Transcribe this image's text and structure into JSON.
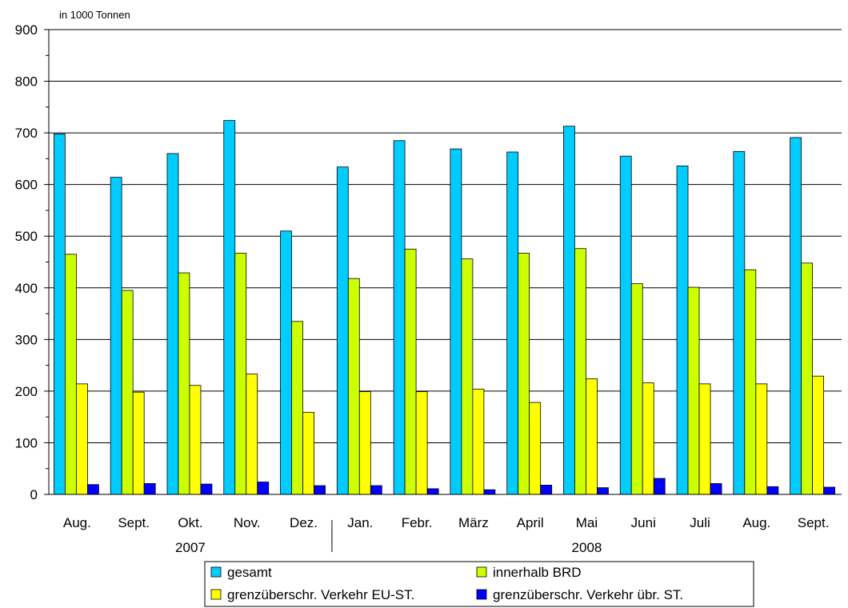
{
  "chart_data": {
    "type": "bar",
    "unit_label": "in 1000 Tonnen",
    "categories": [
      "Aug.",
      "Sept.",
      "Okt.",
      "Nov.",
      "Dez.",
      "Jan.",
      "Febr.",
      "März",
      "April",
      "Mai",
      "Juni",
      "Juli",
      "Aug.",
      "Sept."
    ],
    "year_labels": [
      {
        "text": "2007",
        "first_index": 0,
        "last_index": 4
      },
      {
        "text": "2008",
        "first_index": 5,
        "last_index": 13
      }
    ],
    "series": [
      {
        "name": "gesamt",
        "color": "#00ccff",
        "values": [
          698,
          614,
          660,
          724,
          510,
          634,
          685,
          669,
          663,
          713,
          655,
          636,
          664,
          691
        ]
      },
      {
        "name": "innerhalb BRD",
        "color": "#ccff00",
        "values": [
          465,
          395,
          429,
          467,
          335,
          418,
          475,
          456,
          467,
          476,
          408,
          401,
          435,
          448
        ]
      },
      {
        "name": "grenzüberschr. Verkehr EU-ST.",
        "color": "#ffff00",
        "values": [
          214,
          198,
          211,
          233,
          159,
          199,
          199,
          204,
          178,
          224,
          216,
          214,
          214,
          229
        ]
      },
      {
        "name": "grenzüberschr. Verkehr übr. ST.",
        "color": "#0000ff",
        "values": [
          19,
          21,
          20,
          24,
          17,
          17,
          11,
          9,
          18,
          13,
          31,
          21,
          15,
          14
        ]
      }
    ],
    "ylim": [
      0,
      900
    ],
    "ytick_step": 100,
    "minor_tick_step": 50,
    "grid": true,
    "legend_position": "bottom"
  }
}
